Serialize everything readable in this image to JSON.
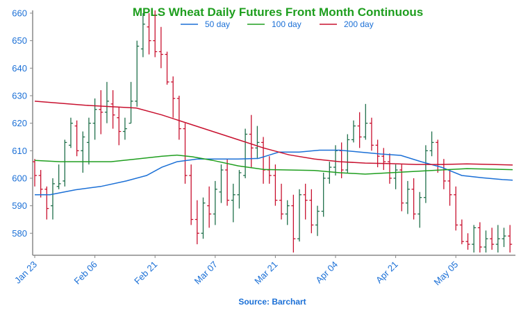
{
  "chart_data": {
    "type": "ohlc",
    "title": "MPLS Wheat Daily Futures Front Month Continuous",
    "source": "Source: Barchart",
    "xlabel": "",
    "ylabel": "",
    "ylim": [
      572,
      661
    ],
    "y_ticks": [
      580,
      590,
      600,
      610,
      620,
      630,
      640,
      650,
      660
    ],
    "x_ticks": [
      {
        "label": "Jan 23",
        "index": 0
      },
      {
        "label": "Feb 06",
        "index": 10
      },
      {
        "label": "Feb 21",
        "index": 20
      },
      {
        "label": "Mar 07",
        "index": 30
      },
      {
        "label": "Mar 21",
        "index": 40
      },
      {
        "label": "Apr 04",
        "index": 50
      },
      {
        "label": "Apr 21",
        "index": 60
      },
      {
        "label": "May 05",
        "index": 70
      }
    ],
    "n_bars": 80,
    "colors": {
      "title": "#1e9e1e",
      "axis_text": "#1a6fd6",
      "source": "#1a6fd6",
      "axis": "#888888",
      "up_bar": "#1f6f4a",
      "down_bar": "#c8102e",
      "ma50": "#1a6fd6",
      "ma100": "#1e9e1e",
      "ma200": "#c8102e"
    },
    "legend": [
      {
        "name": "50 day",
        "color": "#1a6fd6"
      },
      {
        "name": "100 day",
        "color": "#1e9e1e"
      },
      {
        "name": "200 day",
        "color": "#c8102e"
      }
    ],
    "ohlc": [
      [
        606,
        607,
        597,
        601
      ],
      [
        601,
        603,
        593,
        596
      ],
      [
        596,
        597,
        585,
        589
      ],
      [
        590,
        600,
        585,
        598
      ],
      [
        597,
        605,
        596,
        598
      ],
      [
        599,
        614,
        597,
        613
      ],
      [
        612,
        622,
        611,
        620
      ],
      [
        619,
        621,
        608,
        610
      ],
      [
        610,
        617,
        602,
        615
      ],
      [
        613,
        622,
        605,
        620
      ],
      [
        620,
        629,
        614,
        625
      ],
      [
        625,
        632,
        616,
        624
      ],
      [
        624,
        635,
        620,
        628
      ],
      [
        627,
        632,
        618,
        623
      ],
      [
        622,
        626,
        612,
        617
      ],
      [
        617,
        622,
        614,
        618
      ],
      [
        620,
        635,
        620,
        628
      ],
      [
        628,
        650,
        626,
        648
      ],
      [
        647,
        660,
        644,
        656
      ],
      [
        655,
        660,
        645,
        650
      ],
      [
        650,
        661,
        644,
        646
      ],
      [
        646,
        655,
        640,
        645
      ],
      [
        645,
        646,
        634,
        635
      ],
      [
        635,
        637,
        622,
        629
      ],
      [
        629,
        630,
        614,
        618
      ],
      [
        618,
        620,
        598,
        601
      ],
      [
        601,
        605,
        583,
        585
      ],
      [
        585,
        592,
        576,
        580
      ],
      [
        580,
        593,
        578,
        591
      ],
      [
        590,
        597,
        582,
        587
      ],
      [
        587,
        599,
        583,
        596
      ],
      [
        595,
        605,
        591,
        603
      ],
      [
        603,
        607,
        590,
        592
      ],
      [
        592,
        598,
        584,
        594
      ],
      [
        594,
        603,
        589,
        602
      ],
      [
        601,
        618,
        600,
        616
      ],
      [
        616,
        623,
        604,
        611
      ],
      [
        611,
        619,
        607,
        613
      ],
      [
        613,
        615,
        598,
        603
      ],
      [
        603,
        608,
        598,
        601
      ],
      [
        601,
        605,
        590,
        592
      ],
      [
        592,
        598,
        585,
        587
      ],
      [
        587,
        592,
        583,
        590
      ],
      [
        590,
        594,
        573,
        578
      ],
      [
        578,
        596,
        577,
        594
      ],
      [
        594,
        598,
        585,
        592
      ],
      [
        592,
        596,
        580,
        583
      ],
      [
        583,
        590,
        579,
        588
      ],
      [
        588,
        602,
        586,
        600
      ],
      [
        600,
        606,
        598,
        604
      ],
      [
        604,
        612,
        601,
        610
      ],
      [
        610,
        613,
        600,
        603
      ],
      [
        603,
        616,
        602,
        614
      ],
      [
        614,
        621,
        613,
        619
      ],
      [
        619,
        624,
        611,
        615
      ],
      [
        615,
        627,
        614,
        620
      ],
      [
        620,
        622,
        610,
        612
      ],
      [
        612,
        614,
        604,
        608
      ],
      [
        608,
        611,
        603,
        606
      ],
      [
        606,
        609,
        598,
        600
      ],
      [
        600,
        605,
        596,
        603
      ],
      [
        603,
        605,
        588,
        591
      ],
      [
        591,
        599,
        587,
        596
      ],
      [
        596,
        600,
        585,
        587
      ],
      [
        587,
        595,
        582,
        593
      ],
      [
        593,
        612,
        591,
        610
      ],
      [
        610,
        617,
        608,
        613
      ],
      [
        613,
        614,
        602,
        605
      ],
      [
        605,
        607,
        596,
        599
      ],
      [
        599,
        603,
        590,
        594
      ],
      [
        594,
        597,
        581,
        583
      ],
      [
        583,
        585,
        576,
        577
      ],
      [
        577,
        580,
        574,
        576
      ],
      [
        576,
        583,
        573,
        582
      ],
      [
        582,
        584,
        573,
        575
      ],
      [
        575,
        581,
        573,
        578
      ],
      [
        578,
        582,
        574,
        576
      ],
      [
        576,
        583,
        573,
        578
      ],
      [
        578,
        582,
        575,
        579
      ],
      [
        579,
        583,
        573,
        576
      ]
    ],
    "series": [
      {
        "name": "50 day",
        "points": [
          [
            0,
            594
          ],
          [
            3,
            594
          ],
          [
            8,
            595.8
          ],
          [
            13,
            597
          ],
          [
            18,
            599
          ],
          [
            22,
            601
          ],
          [
            25,
            604
          ],
          [
            28,
            606
          ],
          [
            32,
            607
          ],
          [
            36,
            607
          ],
          [
            40,
            607
          ],
          [
            44,
            607.2
          ],
          [
            48,
            609.5
          ],
          [
            52,
            609.5
          ],
          [
            56,
            610.2
          ],
          [
            60,
            610.2
          ],
          [
            64,
            609.5
          ],
          [
            68,
            608.8
          ],
          [
            72,
            608.3
          ],
          [
            76,
            606
          ],
          [
            80,
            604
          ],
          [
            84,
            601
          ],
          [
            88,
            600.2
          ],
          [
            92,
            599.5
          ],
          [
            94,
            599.3
          ]
        ]
      },
      {
        "name": "100 day",
        "points": [
          [
            0,
            606.5
          ],
          [
            5,
            606
          ],
          [
            15,
            606
          ],
          [
            20,
            607
          ],
          [
            25,
            608
          ],
          [
            28,
            608.4
          ],
          [
            31,
            607.8
          ],
          [
            35,
            606.5
          ],
          [
            40,
            604.5
          ],
          [
            45,
            603.2
          ],
          [
            55,
            602.8
          ],
          [
            60,
            602
          ],
          [
            65,
            601.5
          ],
          [
            70,
            602
          ],
          [
            75,
            602.5
          ],
          [
            80,
            603
          ],
          [
            85,
            603.5
          ],
          [
            90,
            603.3
          ],
          [
            94,
            603.1
          ]
        ]
      },
      {
        "name": "200 day",
        "points": [
          [
            0,
            628
          ],
          [
            10,
            626.5
          ],
          [
            20,
            625.5
          ],
          [
            25,
            623
          ],
          [
            30,
            620
          ],
          [
            35,
            617
          ],
          [
            40,
            614
          ],
          [
            45,
            611
          ],
          [
            50,
            608.5
          ],
          [
            55,
            607
          ],
          [
            60,
            606
          ],
          [
            65,
            605.5
          ],
          [
            70,
            605.3
          ],
          [
            75,
            605
          ],
          [
            80,
            605
          ],
          [
            85,
            605.2
          ],
          [
            90,
            605
          ],
          [
            94,
            604.8
          ]
        ]
      }
    ]
  }
}
